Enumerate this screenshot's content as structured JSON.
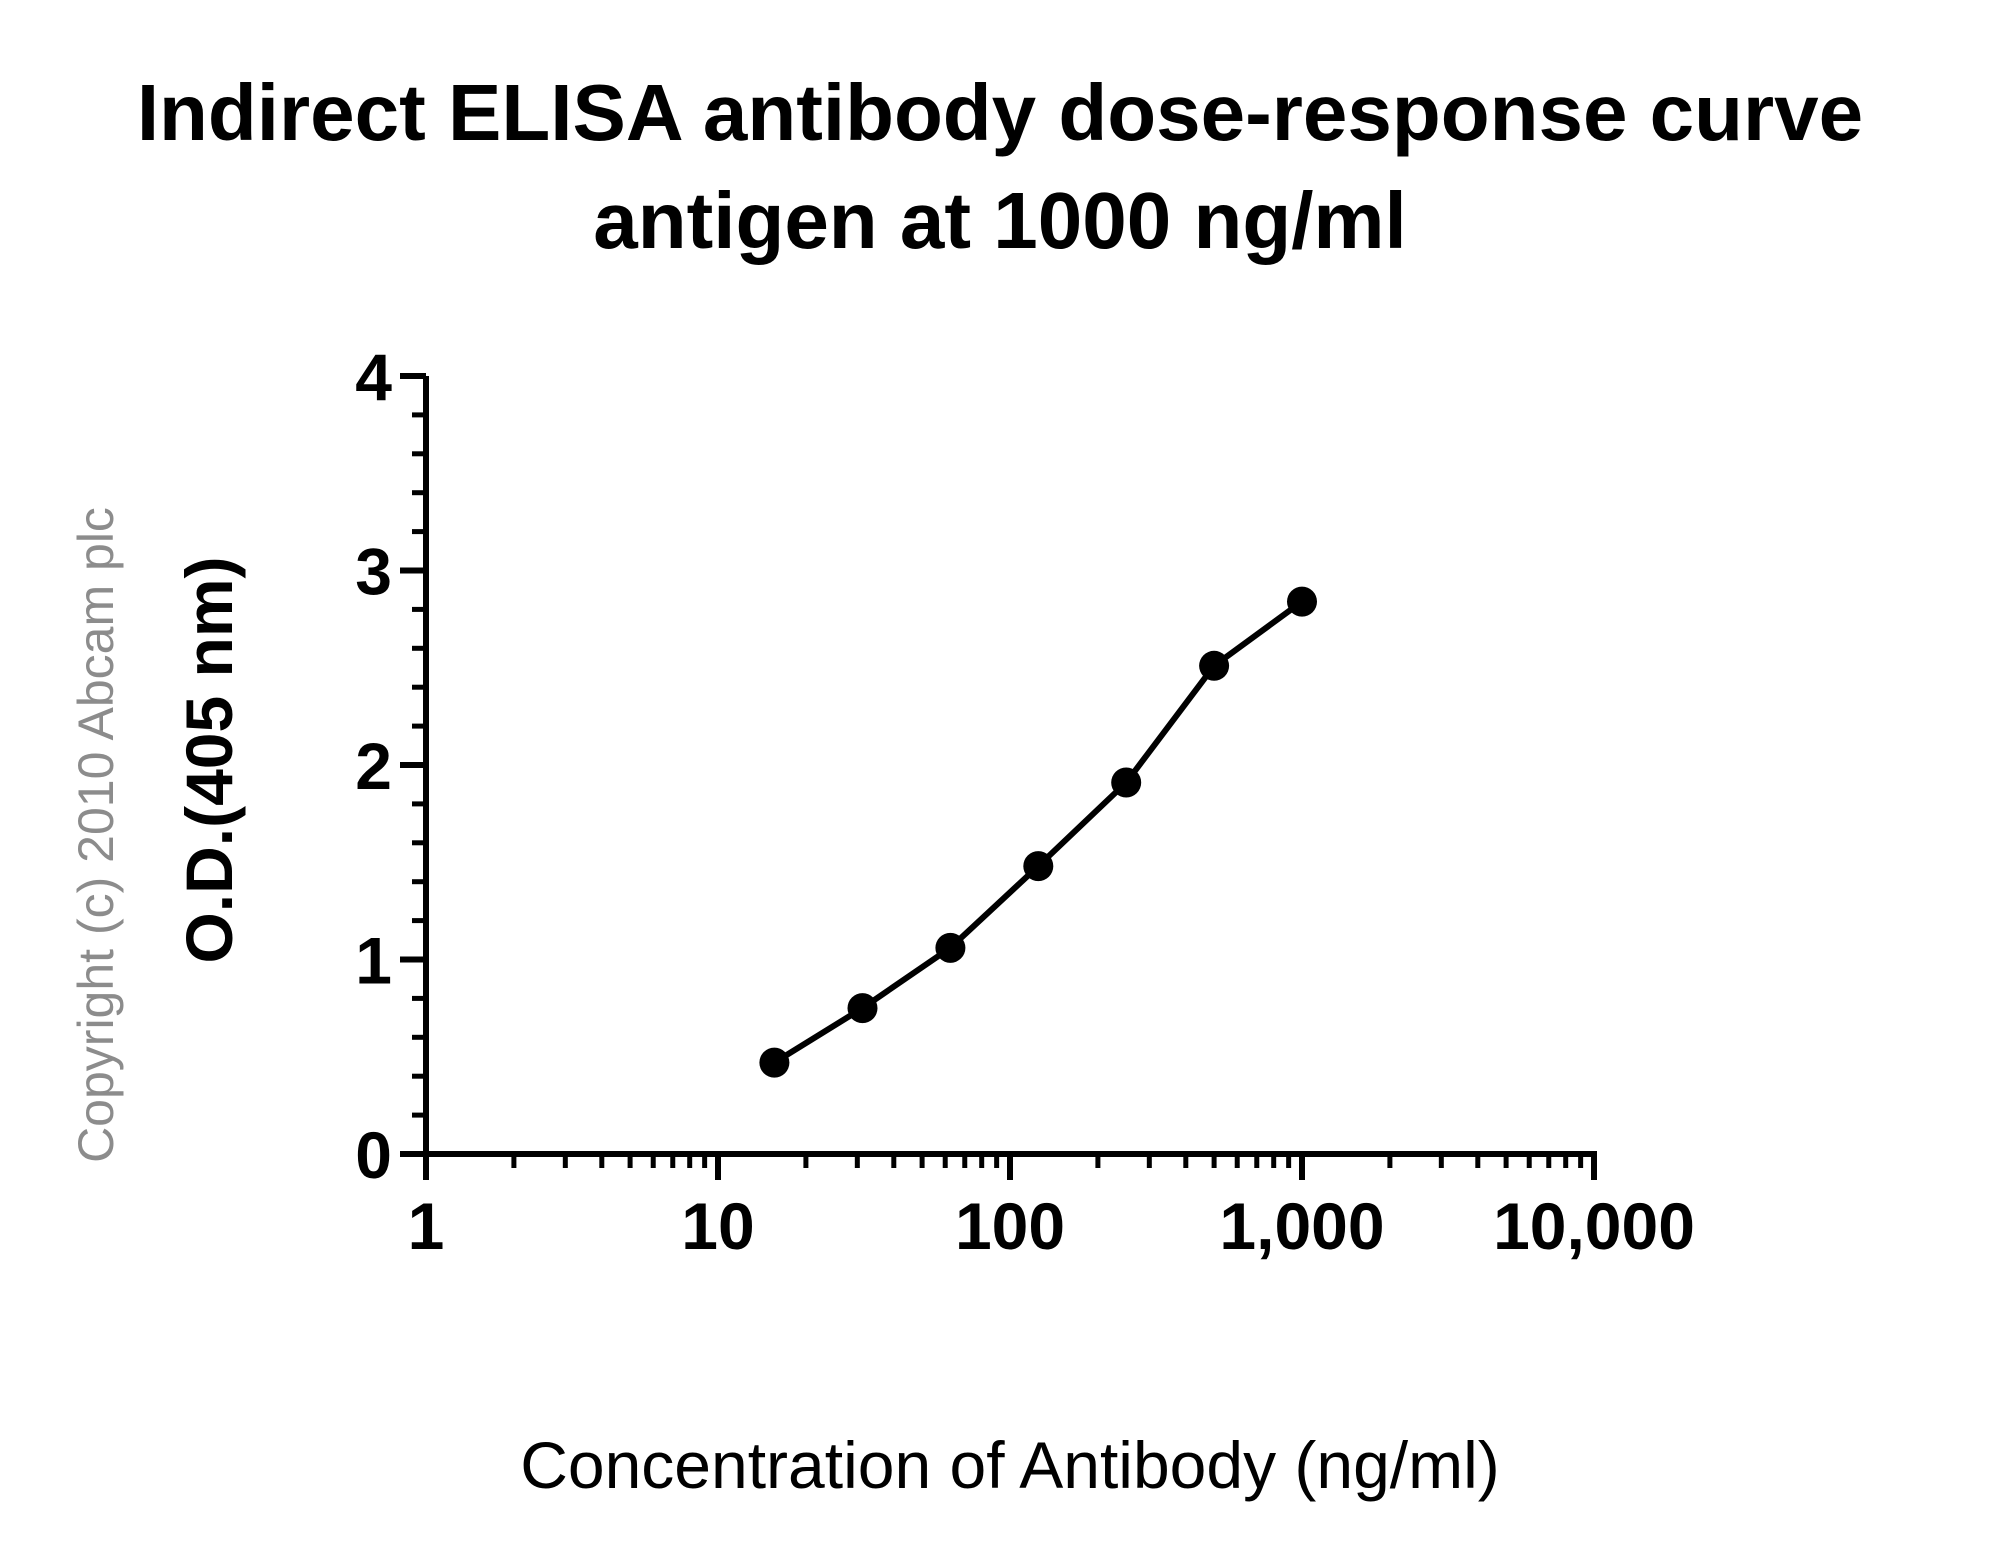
{
  "chart_data": {
    "type": "line",
    "title_line1": "Indirect ELISA antibody dose-response curve",
    "title_line2": "antigen at 1000 ng/ml",
    "xlabel": "Concentration of Antibody (ng/ml)",
    "ylabel": "O.D.(405 nm)",
    "xscale": "log",
    "xlim": [
      1,
      10000
    ],
    "ylim": [
      0,
      4
    ],
    "x_ticks": [
      1,
      10,
      100,
      1000,
      10000
    ],
    "x_tick_labels": [
      "1",
      "10",
      "100",
      "1,000",
      "10,000"
    ],
    "y_ticks": [
      0,
      1,
      2,
      3,
      4
    ],
    "y_tick_labels": [
      "0",
      "1",
      "2",
      "3",
      "4"
    ],
    "grid": false,
    "series": [
      {
        "x": [
          15.6,
          31.25,
          62.5,
          125,
          250,
          500,
          1000
        ],
        "y": [
          0.47,
          0.75,
          1.06,
          1.48,
          1.91,
          2.51,
          2.84
        ]
      }
    ],
    "color": "#000000"
  },
  "watermark": {
    "text": "Copyright (c) 2010 Abcam plc",
    "color": "#8c8c8c"
  }
}
